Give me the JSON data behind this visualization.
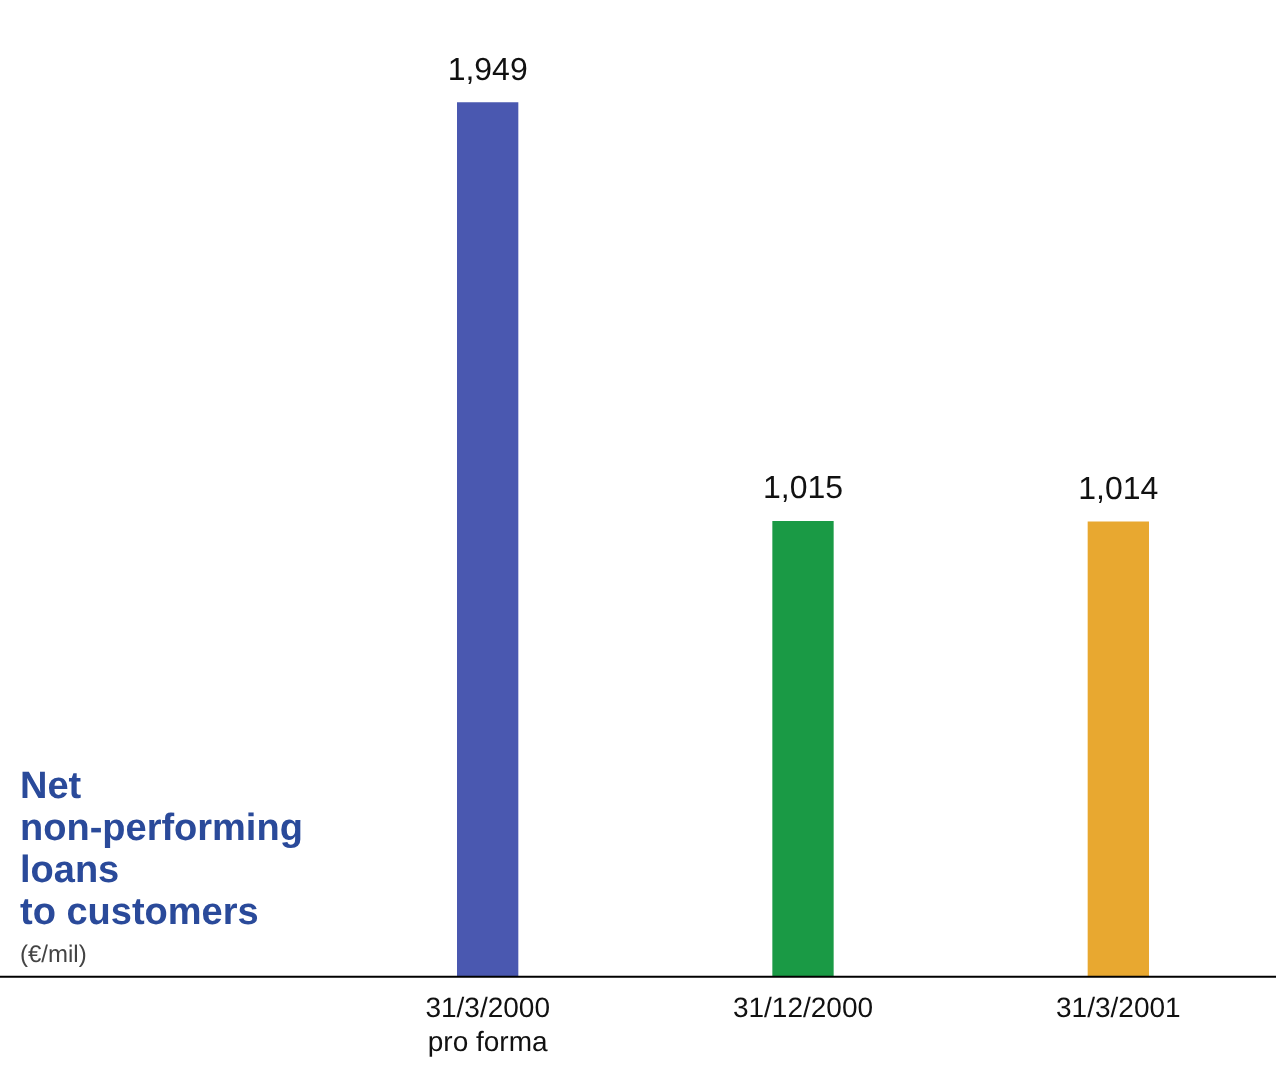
{
  "chart_data": {
    "type": "bar",
    "title": "Net\nnon-performing\nloans\nto customers",
    "subtitle": "(€/mil)",
    "categories": [
      "31/3/2000\npro forma",
      "31/12/2000",
      "31/3/2001"
    ],
    "values": [
      1949,
      1015,
      1014
    ],
    "colors": [
      "#4a58b0",
      "#1a9a45",
      "#e8a830"
    ],
    "value_labels": [
      "1,949",
      "1,015",
      "1,014"
    ],
    "grid": false,
    "legend": false
  }
}
